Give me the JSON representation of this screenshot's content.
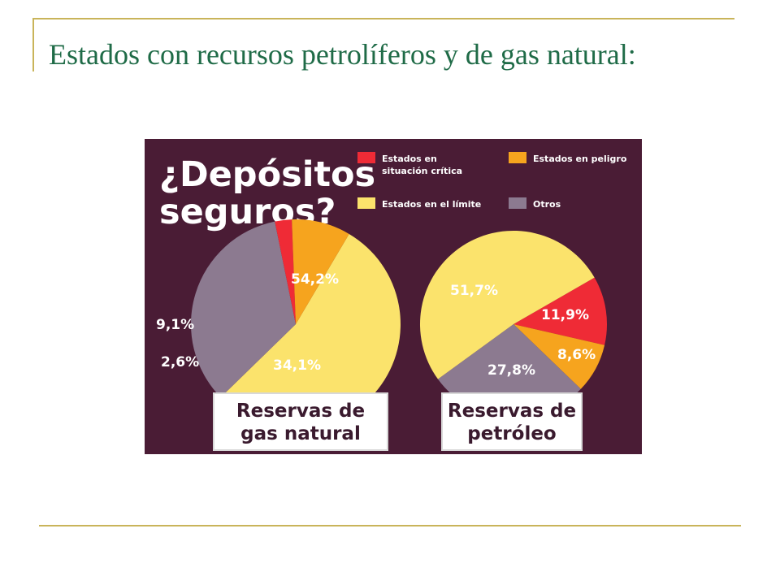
{
  "slide": {
    "title": "Estados con recursos petrolíferos y de gas natural:"
  },
  "chart_data": {
    "type": "pie",
    "headline": [
      "¿Depósitos",
      "seguros?"
    ],
    "legend": [
      {
        "key": "critica",
        "lines": [
          "Estados en",
          "situación crítica"
        ],
        "color": "#ef2b36"
      },
      {
        "key": "peligro",
        "lines": [
          "Estados en peligro"
        ],
        "color": "#f6a41e"
      },
      {
        "key": "limite",
        "lines": [
          "Estados en el límite"
        ],
        "color": "#fbe36c"
      },
      {
        "key": "otros",
        "lines": [
          "Otros"
        ],
        "color": "#8c7a90"
      }
    ],
    "pies": [
      {
        "title": [
          "Reservas de",
          "gas natural"
        ],
        "slices": [
          {
            "key": "limite",
            "value": 54.2,
            "label": "54,2%"
          },
          {
            "key": "otros",
            "value": 34.1,
            "label": "34,1%"
          },
          {
            "key": "critica",
            "value": 2.6,
            "label": "2,6%"
          },
          {
            "key": "peligro",
            "value": 9.1,
            "label": "9,1%"
          }
        ]
      },
      {
        "title": [
          "Reservas de",
          "petróleo"
        ],
        "slices": [
          {
            "key": "critica",
            "value": 11.9,
            "label": "11,9%"
          },
          {
            "key": "peligro",
            "value": 8.6,
            "label": "8,6%"
          },
          {
            "key": "otros",
            "value": 27.8,
            "label": "27,8%"
          },
          {
            "key": "limite",
            "value": 51.7,
            "label": "51,7%"
          }
        ]
      }
    ]
  }
}
